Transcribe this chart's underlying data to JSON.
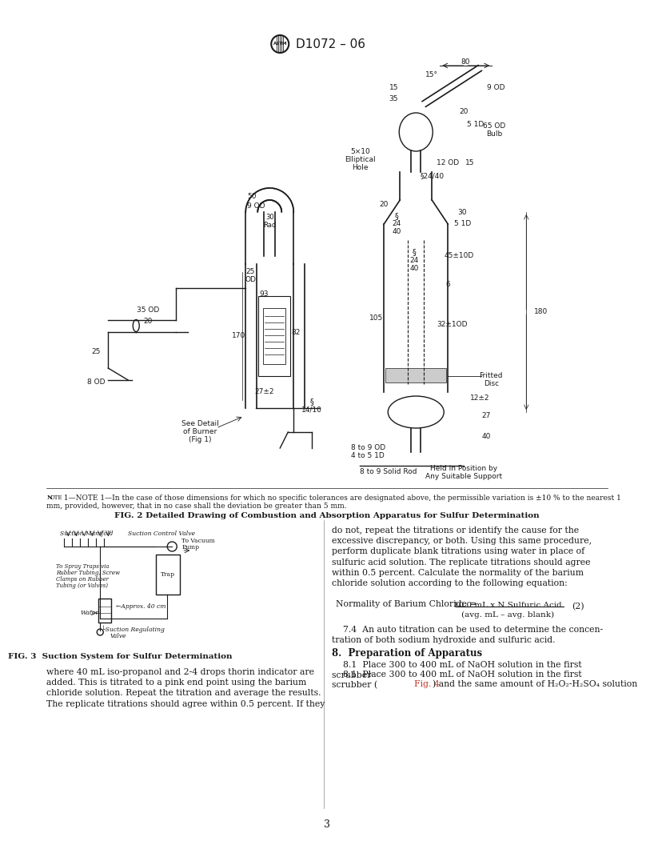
{
  "page_bg": "#ffffff",
  "text_color": "#1a1a1a",
  "header_text": "D1072 – 06",
  "fig2_caption_note": "NOTE 1—In the case of those dimensions for which no specific tolerances are designated above, the permissible variation is ±10 % to the nearest 1\nmm, provided, however, that in no case shall the deviation be greater than 5 mm.",
  "fig2_caption": "FIG. 2 Detailed Drawing of Combustion and Absorption Apparatus for Sulfur Determination",
  "fig3_caption": "FIG. 3  Suction System for Sulfur Determination",
  "body_text_left": "where 40 mL iso-propanol and 2-4 drops thorin indicator are\nadded. This is titrated to a pink end point using the barium\nchloride solution. Repeat the titration and average the results.\nThe replicate titrations should agree within 0.5 percent. If they",
  "body_text_right_1": "do not, repeat the titrations or identify the cause for the\nexcessive discrepancy, or both. Using this same procedure,\nperform duplicate blank titrations using water in place of\nsulfuric acid solution. The replicate titrations should agree\nwithin 0.5 percent. Calculate the normality of the barium\nchloride solution according to the following equation:",
  "equation_label": "Normality of Barium Chloride =",
  "equation_numerator": "10.0 mL x N Sulfuric Acid",
  "equation_denominator": "(avg. mL – avg. blank)",
  "equation_number": "(2)",
  "body_text_right_2": "    7.4  An auto titration can be used to determine the concen-\ntration of both sodium hydroxide and sulfuric acid.",
  "section_header": "8.  Preparation of Apparatus",
  "body_text_right_3": "    8.1  Place 300 to 400 mL of NaOH solution in the first\nscrubber (Fig. 4) and the same amount of H₂O₂-H₂SO₄ solution",
  "page_number": "3",
  "fig_color_ref": "#c0392b"
}
